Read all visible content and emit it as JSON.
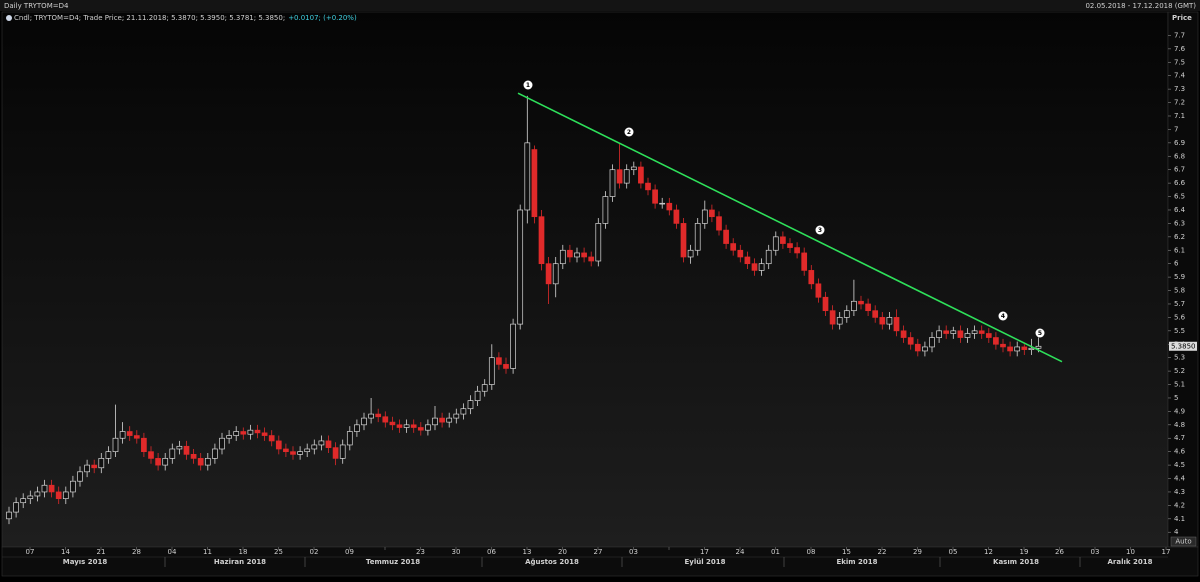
{
  "header": {
    "title": "Daily TRYTOM=D4",
    "range": "02.05.2018 - 17.12.2018 (GMT)"
  },
  "chart_data": {
    "type": "candlestick",
    "legend": "Cndl; TRYTOM=D4; Trade Price; 21.11.2018; 5.3870; 5.3950; 5.3781; 5.3850;",
    "legend_change": "+0.0107; (+0.20%)",
    "y_axis_label": "Price",
    "auto_button": "Auto",
    "last_price": {
      "value": 5.385,
      "label": "5.3850"
    },
    "up_color": "#d8d8d8",
    "down_color": "#e02a2a",
    "trend_color": "#2ee05a",
    "ylim": [
      3.89,
      7.8
    ],
    "yticks": [
      4,
      4.1,
      4.2,
      4.3,
      4.4,
      4.5,
      4.6,
      4.7,
      4.8,
      4.9,
      5,
      5.1,
      5.2,
      5.3,
      5.4,
      5.5,
      5.6,
      5.7,
      5.8,
      5.9,
      6,
      6.1,
      6.2,
      6.3,
      6.4,
      6.5,
      6.6,
      6.7,
      6.8,
      6.9,
      7,
      7.1,
      7.2,
      7.3,
      7.4,
      7.5,
      7.6,
      7.7
    ],
    "week_labels": [
      "07",
      "14",
      "21",
      "28",
      "04",
      "11",
      "18",
      "25",
      "02",
      "09",
      null,
      "23",
      "30",
      "06",
      "13",
      "20",
      "27",
      "03",
      null,
      "17",
      "24",
      "01",
      "08",
      "15",
      "22",
      "29",
      "05",
      "12",
      "19",
      "26",
      "03",
      "10",
      "17"
    ],
    "months": [
      "Mayıs 2018",
      "Haziran 2018",
      "Temmuz 2018",
      "Ağustos 2018",
      "Eylül 2018",
      "Ekim 2018",
      "Kasım 2018",
      "Aralık 2018"
    ],
    "trend_line": [
      7.27,
      5.27
    ],
    "markers": [
      "1",
      "2",
      "3",
      "4",
      "5"
    ],
    "candles": [
      [
        4.1,
        4.19,
        4.06,
        4.15
      ],
      [
        4.15,
        4.26,
        4.11,
        4.22
      ],
      [
        4.22,
        4.29,
        4.18,
        4.25
      ],
      [
        4.25,
        4.31,
        4.21,
        4.27
      ],
      [
        4.27,
        4.34,
        4.23,
        4.3
      ],
      [
        4.3,
        4.39,
        4.26,
        4.35
      ],
      [
        4.35,
        4.39,
        4.26,
        4.3
      ],
      [
        4.3,
        4.34,
        4.21,
        4.25
      ],
      [
        4.25,
        4.34,
        4.21,
        4.3
      ],
      [
        4.3,
        4.42,
        4.26,
        4.38
      ],
      [
        4.38,
        4.49,
        4.34,
        4.45
      ],
      [
        4.45,
        4.54,
        4.41,
        4.5
      ],
      [
        4.5,
        4.54,
        4.44,
        4.48
      ],
      [
        4.48,
        4.59,
        4.44,
        4.55
      ],
      [
        4.55,
        4.64,
        4.51,
        4.6
      ],
      [
        4.6,
        4.95,
        4.56,
        4.7
      ],
      [
        4.7,
        4.82,
        4.66,
        4.75
      ],
      [
        4.75,
        4.79,
        4.68,
        4.72
      ],
      [
        4.72,
        4.76,
        4.66,
        4.7
      ],
      [
        4.7,
        4.74,
        4.56,
        4.6
      ],
      [
        4.6,
        4.64,
        4.51,
        4.55
      ],
      [
        4.55,
        4.59,
        4.46,
        4.5
      ],
      [
        4.5,
        4.59,
        4.46,
        4.55
      ],
      [
        4.55,
        4.66,
        4.51,
        4.62
      ],
      [
        4.62,
        4.68,
        4.58,
        4.64
      ],
      [
        4.64,
        4.68,
        4.54,
        4.58
      ],
      [
        4.58,
        4.62,
        4.51,
        4.55
      ],
      [
        4.55,
        4.59,
        4.46,
        4.5
      ],
      [
        4.5,
        4.59,
        4.46,
        4.55
      ],
      [
        4.55,
        4.66,
        4.51,
        4.62
      ],
      [
        4.62,
        4.74,
        4.58,
        4.7
      ],
      [
        4.7,
        4.76,
        4.66,
        4.72
      ],
      [
        4.72,
        4.79,
        4.68,
        4.75
      ],
      [
        4.75,
        4.78,
        4.69,
        4.73
      ],
      [
        4.73,
        4.8,
        4.69,
        4.76
      ],
      [
        4.76,
        4.8,
        4.7,
        4.74
      ],
      [
        4.74,
        4.78,
        4.68,
        4.72
      ],
      [
        4.72,
        4.76,
        4.64,
        4.68
      ],
      [
        4.68,
        4.72,
        4.58,
        4.62
      ],
      [
        4.62,
        4.66,
        4.56,
        4.6
      ],
      [
        4.6,
        4.64,
        4.54,
        4.58
      ],
      [
        4.58,
        4.64,
        4.54,
        4.6
      ],
      [
        4.6,
        4.66,
        4.56,
        4.62
      ],
      [
        4.62,
        4.69,
        4.58,
        4.65
      ],
      [
        4.65,
        4.72,
        4.61,
        4.68
      ],
      [
        4.68,
        4.72,
        4.59,
        4.63
      ],
      [
        4.63,
        4.67,
        4.5,
        4.55
      ],
      [
        4.55,
        4.69,
        4.51,
        4.65
      ],
      [
        4.65,
        4.79,
        4.61,
        4.75
      ],
      [
        4.75,
        4.84,
        4.71,
        4.8
      ],
      [
        4.8,
        4.89,
        4.76,
        4.85
      ],
      [
        4.85,
        5.0,
        4.81,
        4.88
      ],
      [
        4.88,
        4.92,
        4.82,
        4.86
      ],
      [
        4.86,
        4.9,
        4.78,
        4.82
      ],
      [
        4.82,
        4.86,
        4.76,
        4.8
      ],
      [
        4.8,
        4.84,
        4.74,
        4.78
      ],
      [
        4.78,
        4.84,
        4.74,
        4.8
      ],
      [
        4.8,
        4.84,
        4.74,
        4.78
      ],
      [
        4.78,
        4.82,
        4.72,
        4.76
      ],
      [
        4.76,
        4.84,
        4.72,
        4.8
      ],
      [
        4.8,
        4.94,
        4.76,
        4.85
      ],
      [
        4.85,
        4.89,
        4.78,
        4.82
      ],
      [
        4.82,
        4.89,
        4.78,
        4.85
      ],
      [
        4.85,
        4.92,
        4.81,
        4.88
      ],
      [
        4.88,
        4.96,
        4.84,
        4.92
      ],
      [
        4.92,
        5.02,
        4.88,
        4.98
      ],
      [
        4.98,
        5.09,
        4.94,
        5.05
      ],
      [
        5.05,
        5.14,
        5.01,
        5.1
      ],
      [
        5.1,
        5.4,
        5.06,
        5.3
      ],
      [
        5.3,
        5.34,
        5.21,
        5.25
      ],
      [
        5.25,
        5.3,
        5.18,
        5.22
      ],
      [
        5.22,
        5.59,
        5.18,
        5.55
      ],
      [
        5.55,
        6.44,
        5.51,
        6.4
      ],
      [
        6.4,
        7.25,
        6.3,
        6.9
      ],
      [
        6.85,
        6.88,
        6.3,
        6.35
      ],
      [
        6.35,
        6.4,
        5.95,
        6.0
      ],
      [
        6.0,
        6.05,
        5.7,
        5.85
      ],
      [
        5.85,
        6.05,
        5.75,
        6.0
      ],
      [
        6.0,
        6.14,
        5.96,
        6.1
      ],
      [
        6.1,
        6.14,
        6.01,
        6.05
      ],
      [
        6.05,
        6.12,
        6.01,
        6.08
      ],
      [
        6.08,
        6.12,
        6.01,
        6.05
      ],
      [
        6.05,
        6.09,
        5.98,
        6.02
      ],
      [
        6.02,
        6.34,
        5.98,
        6.3
      ],
      [
        6.3,
        6.54,
        6.26,
        6.5
      ],
      [
        6.5,
        6.74,
        6.46,
        6.7
      ],
      [
        6.7,
        6.9,
        6.56,
        6.6
      ],
      [
        6.6,
        6.74,
        6.56,
        6.7
      ],
      [
        6.7,
        6.76,
        6.66,
        6.72
      ],
      [
        6.72,
        6.76,
        6.56,
        6.6
      ],
      [
        6.6,
        6.64,
        6.51,
        6.55
      ],
      [
        6.55,
        6.59,
        6.41,
        6.45
      ],
      [
        6.45,
        6.49,
        6.41,
        6.45
      ],
      [
        6.45,
        6.49,
        6.36,
        6.4
      ],
      [
        6.4,
        6.44,
        6.26,
        6.3
      ],
      [
        6.3,
        6.34,
        6.01,
        6.05
      ],
      [
        6.05,
        6.14,
        6.0,
        6.1
      ],
      [
        6.1,
        6.34,
        6.06,
        6.3
      ],
      [
        6.3,
        6.47,
        6.26,
        6.4
      ],
      [
        6.4,
        6.44,
        6.31,
        6.35
      ],
      [
        6.35,
        6.39,
        6.21,
        6.25
      ],
      [
        6.25,
        6.29,
        6.11,
        6.15
      ],
      [
        6.15,
        6.19,
        6.06,
        6.1
      ],
      [
        6.1,
        6.14,
        6.01,
        6.05
      ],
      [
        6.05,
        6.09,
        5.96,
        6.0
      ],
      [
        6.0,
        6.04,
        5.91,
        5.95
      ],
      [
        5.95,
        6.04,
        5.91,
        6.0
      ],
      [
        6.0,
        6.14,
        5.96,
        6.1
      ],
      [
        6.1,
        6.24,
        6.06,
        6.2
      ],
      [
        6.2,
        6.24,
        6.11,
        6.15
      ],
      [
        6.15,
        6.19,
        6.08,
        6.12
      ],
      [
        6.12,
        6.16,
        6.04,
        6.08
      ],
      [
        6.08,
        6.12,
        5.91,
        5.95
      ],
      [
        5.95,
        5.99,
        5.81,
        5.85
      ],
      [
        5.85,
        5.89,
        5.71,
        5.75
      ],
      [
        5.75,
        5.79,
        5.61,
        5.65
      ],
      [
        5.65,
        5.69,
        5.51,
        5.55
      ],
      [
        5.55,
        5.64,
        5.51,
        5.6
      ],
      [
        5.6,
        5.69,
        5.56,
        5.65
      ],
      [
        5.65,
        5.88,
        5.61,
        5.72
      ],
      [
        5.72,
        5.76,
        5.66,
        5.7
      ],
      [
        5.7,
        5.74,
        5.61,
        5.65
      ],
      [
        5.65,
        5.69,
        5.56,
        5.6
      ],
      [
        5.6,
        5.64,
        5.51,
        5.55
      ],
      [
        5.55,
        5.64,
        5.51,
        5.6
      ],
      [
        5.6,
        5.66,
        5.46,
        5.5
      ],
      [
        5.5,
        5.54,
        5.41,
        5.45
      ],
      [
        5.45,
        5.49,
        5.36,
        5.4
      ],
      [
        5.4,
        5.44,
        5.31,
        5.35
      ],
      [
        5.35,
        5.42,
        5.31,
        5.38
      ],
      [
        5.38,
        5.49,
        5.34,
        5.45
      ],
      [
        5.45,
        5.54,
        5.41,
        5.5
      ],
      [
        5.5,
        5.54,
        5.44,
        5.48
      ],
      [
        5.48,
        5.53,
        5.44,
        5.5
      ],
      [
        5.5,
        5.54,
        5.41,
        5.45
      ],
      [
        5.45,
        5.52,
        5.41,
        5.48
      ],
      [
        5.48,
        5.54,
        5.44,
        5.5
      ],
      [
        5.5,
        5.54,
        5.44,
        5.48
      ],
      [
        5.48,
        5.52,
        5.41,
        5.45
      ],
      [
        5.45,
        5.49,
        5.36,
        5.4
      ],
      [
        5.4,
        5.44,
        5.34,
        5.38
      ],
      [
        5.38,
        5.42,
        5.31,
        5.35
      ],
      [
        5.35,
        5.42,
        5.31,
        5.38
      ],
      [
        5.38,
        5.4,
        5.32,
        5.36
      ],
      [
        5.36,
        5.44,
        5.32,
        5.37
      ],
      [
        5.37,
        5.45,
        5.34,
        5.385
      ]
    ]
  }
}
